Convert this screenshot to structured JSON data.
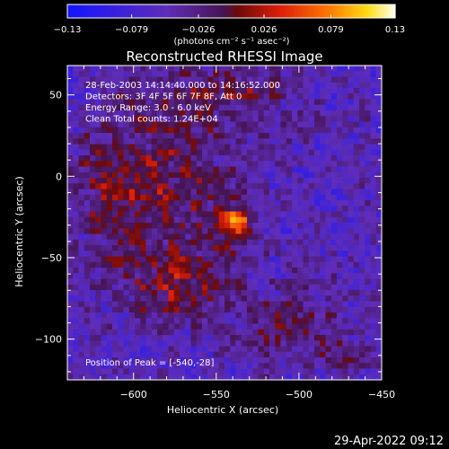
{
  "chart_data": {
    "type": "heatmap",
    "title": "Reconstructed RHESSI Image",
    "xlabel": "Heliocentric X (arcsec)",
    "ylabel": "Heliocentric Y (arcsec)",
    "xlim": [
      -640,
      -450
    ],
    "ylim": [
      -125,
      68
    ],
    "x_ticks": [
      -600,
      -550,
      -500,
      -450
    ],
    "x_tick_labels": [
      "−600",
      "−550",
      "−500",
      "−450"
    ],
    "y_ticks": [
      50,
      0,
      -50,
      -100
    ],
    "y_tick_labels": [
      "50",
      "0",
      "−50",
      "−100"
    ],
    "colorbar": {
      "range": [
        -0.13,
        0.13
      ],
      "ticks": [
        -0.13,
        -0.079,
        -0.026,
        0.026,
        0.079,
        0.13
      ],
      "tick_labels": [
        "−0.13",
        "−0.079",
        "−0.026",
        "0.026",
        "0.079",
        "0.13"
      ],
      "unit_label": "(photons cm⁻² s⁻¹ asec⁻²)"
    },
    "annotations": [
      "28-Feb-2003 14:14:40.000 to 14:16:52.000",
      "Detectors: 3F 4F 5F 6F 7F 8F, Att 0",
      "Energy Range: 3.0 - 6.0 keV",
      "Clean     Total counts: 1.24E+04"
    ],
    "peak_label": "Position of Peak = [-540,-28]",
    "peak": {
      "x": -540,
      "y": -28,
      "value": 0.13
    },
    "sources": [
      {
        "x": -540,
        "y": -28,
        "sx": 8,
        "sy": 7,
        "amp": 0.11
      },
      {
        "x": -585,
        "y": -10,
        "sx": 30,
        "sy": 40,
        "amp": 0.055
      },
      {
        "x": -540,
        "y": 50,
        "sx": 25,
        "sy": 12,
        "amp": 0.04
      },
      {
        "x": -505,
        "y": -90,
        "sx": 18,
        "sy": 14,
        "amp": 0.045
      },
      {
        "x": -470,
        "y": -110,
        "sx": 12,
        "sy": 8,
        "amp": 0.035
      },
      {
        "x": -570,
        "y": -70,
        "sx": 22,
        "sy": 15,
        "amp": 0.045
      },
      {
        "x": -615,
        "y": 0,
        "sx": 10,
        "sy": 25,
        "amp": 0.03
      }
    ],
    "background_level": -0.055
  },
  "footer": {
    "timestamp": "29-Apr-2022 09:12"
  }
}
